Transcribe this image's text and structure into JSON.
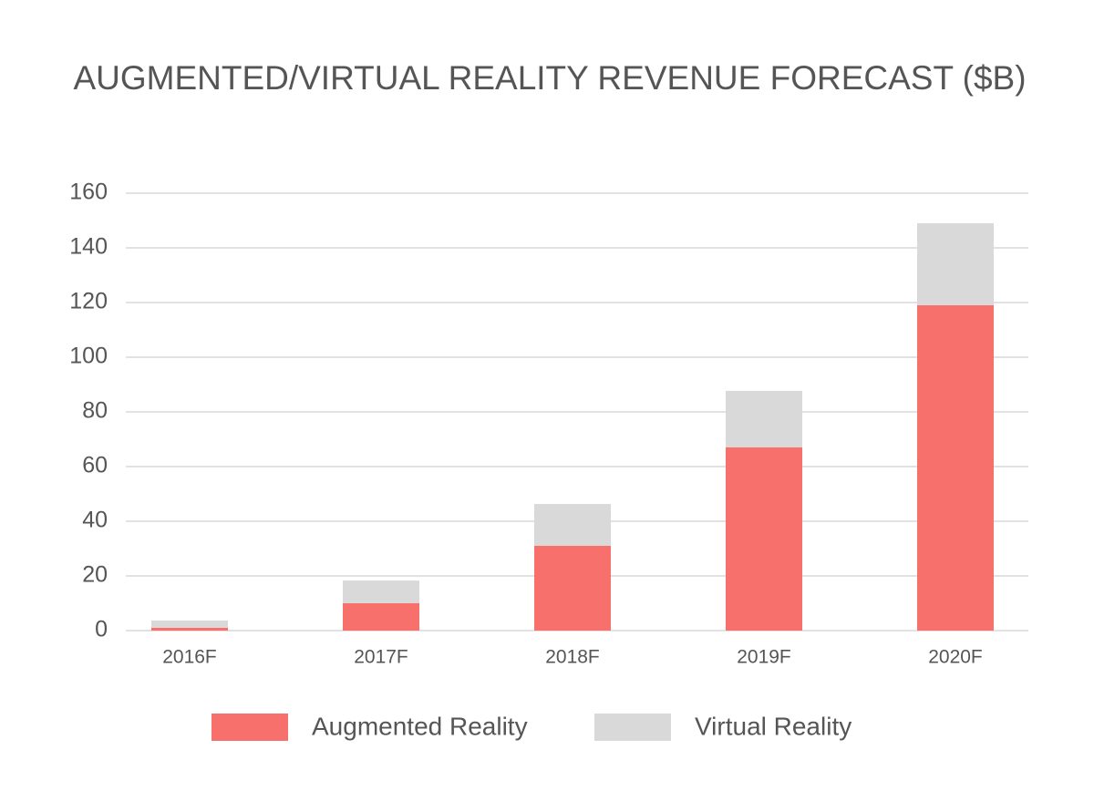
{
  "chart_data": {
    "type": "stacked-bar",
    "title": "AUGMENTED/VIRTUAL REALITY REVENUE FORECAST ($B)",
    "categories": [
      "2016F",
      "2017F",
      "2018F",
      "2019F",
      "2020F"
    ],
    "series": [
      {
        "name": "Augmented Reality",
        "color": "#f8706b",
        "values": [
          1,
          10,
          31,
          67,
          119
        ]
      },
      {
        "name": "Virtual Reality",
        "color": "#d9d9d9",
        "values": [
          2.7,
          8.3,
          15.3,
          20.7,
          30
        ]
      }
    ],
    "ylim": [
      0,
      160
    ],
    "yticks": [
      0,
      20,
      40,
      60,
      80,
      100,
      120,
      140,
      160
    ],
    "grid": true,
    "legend": "bottom"
  }
}
